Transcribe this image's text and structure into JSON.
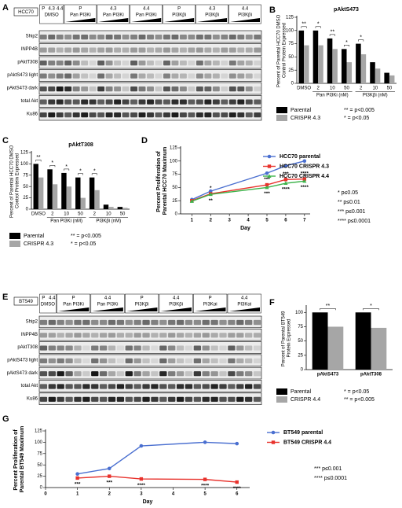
{
  "blots": [
    {
      "label": "A",
      "cell_line": "HCC70",
      "header": [
        {
          "lines": [
            "P",
            "4.3",
            "4.4"
          ],
          "treatment": "DMSO"
        },
        {
          "lines": [
            "P"
          ],
          "treatment": "Pan PI3Ki"
        },
        {
          "lines": [
            "4.3"
          ],
          "treatment": "Pan PI3Ki"
        },
        {
          "lines": [
            "4.4"
          ],
          "treatment": "Pan PI3Ki"
        },
        {
          "lines": [
            "P"
          ],
          "treatment": "PI3Kβi"
        },
        {
          "lines": [
            "4.3"
          ],
          "treatment": "PI3Kβi"
        },
        {
          "lines": [
            "4.4"
          ],
          "treatment": "PI3Kβi"
        }
      ],
      "rows": [
        "Ship2",
        "INPP4B",
        "pAktT308",
        "pAktS473 light",
        "pAktS473 dark",
        "total Akt",
        "Ku86"
      ]
    },
    {
      "label": "E",
      "cell_line": "BT549",
      "header": [
        {
          "lines": [
            "P",
            "4.4"
          ],
          "treatment": "DMSO"
        },
        {
          "lines": [
            "P"
          ],
          "treatment": "Pan PI3Ki"
        },
        {
          "lines": [
            "4.4"
          ],
          "treatment": "Pan PI3Ki"
        },
        {
          "lines": [
            "P"
          ],
          "treatment": "PI3Kβi"
        },
        {
          "lines": [
            "4.4"
          ],
          "treatment": "PI3Kβi"
        },
        {
          "lines": [
            "P"
          ],
          "treatment": "PI3Kαi"
        },
        {
          "lines": [
            "4.4"
          ],
          "treatment": "PI3Kαi"
        }
      ],
      "rows": [
        "Ship2",
        "INPP4B",
        "pAktT308",
        "pAktS473 light",
        "pAktS473 dark",
        "total Akt",
        "Ku86"
      ]
    }
  ],
  "chart_data": [
    {
      "label": "B",
      "type": "bar",
      "title": "pAktS473",
      "y_label": "Percent of Parental HCC70 DMSO Control Protein Expressed",
      "categories": [
        "DMSO",
        "2",
        "10",
        "50",
        "2",
        "10",
        "50"
      ],
      "x_groups": [
        "Pan PI3Ki (nM)",
        "PI3Kβi (nM)"
      ],
      "series": [
        {
          "name": "Parental",
          "color": "#000000",
          "values": [
            100,
            100,
            85,
            65,
            75,
            40,
            20
          ]
        },
        {
          "name": "CRISPR 4.3",
          "color": "#a6a6a6",
          "values": [
            72,
            72,
            65,
            40,
            55,
            28,
            15
          ]
        }
      ],
      "significance": [
        "**",
        "*",
        "**",
        "*",
        "*",
        null,
        null
      ],
      "ylim": [
        0,
        125
      ],
      "yticks": [
        0,
        25,
        50,
        75,
        100,
        125
      ],
      "notes": [
        "** = p<0.005",
        "* = p<0.05"
      ]
    },
    {
      "label": "C",
      "type": "bar",
      "title": "pAktT308",
      "y_label": "Percent of Parental HCC70 DMSO Control Protein Expressed",
      "categories": [
        "DMSO",
        "2",
        "10",
        "50",
        "2",
        "10",
        "50"
      ],
      "x_groups": [
        "Pan PI3Ki (nM)",
        "PI3Kβi (nM)"
      ],
      "series": [
        {
          "name": "Parental",
          "color": "#000000",
          "values": [
            100,
            88,
            80,
            70,
            70,
            10,
            5
          ]
        },
        {
          "name": "CRISPR 4.3",
          "color": "#a6a6a6",
          "values": [
            70,
            55,
            50,
            25,
            42,
            5,
            3
          ]
        }
      ],
      "significance": [
        "**",
        "*",
        "*",
        "*",
        "*",
        null,
        null
      ],
      "ylim": [
        0,
        125
      ],
      "yticks": [
        0,
        25,
        50,
        75,
        100,
        125
      ],
      "notes": [
        "** = p<0.005",
        "* = p<0.05"
      ]
    },
    {
      "label": "D",
      "type": "line",
      "y_label": "Percent Proliferation of Parental HCC70 Maximum",
      "x_label": "Day",
      "x": [
        1,
        2,
        5,
        6,
        7
      ],
      "series": [
        {
          "name": "HCC70 parental",
          "color": "#4a6fd0",
          "values": [
            27,
            43,
            77,
            91,
            100
          ],
          "significance": [
            null,
            null,
            null,
            null,
            null
          ]
        },
        {
          "name": "HCC70 CRISPR 4.3",
          "color": "#e8322c",
          "values": [
            25,
            38,
            55,
            65,
            66
          ],
          "significance": [
            null,
            "*",
            "***",
            "***",
            "****"
          ]
        },
        {
          "name": "HCC70 CRISPR 4.4",
          "color": "#3cb34a",
          "values": [
            24,
            37,
            50,
            58,
            62
          ],
          "significance": [
            null,
            "**",
            "***",
            "****",
            "****"
          ]
        }
      ],
      "xlim": [
        0.4,
        7.3
      ],
      "xticks": [
        1,
        2,
        3,
        4,
        5,
        6,
        7
      ],
      "ylim": [
        0,
        125
      ],
      "yticks": [
        0,
        25,
        50,
        75,
        100,
        125
      ],
      "notes": [
        "* p≤0.05",
        "** p≤0.01",
        "*** p≤0.001",
        "**** p≤0.0001"
      ]
    },
    {
      "label": "F",
      "type": "bar",
      "y_label": "Percent of Parental BT549 Protein Expressed",
      "categories": [
        "pAktS473",
        "pAktT308"
      ],
      "series": [
        {
          "name": "Parental",
          "color": "#000000",
          "values": [
            100,
            100
          ]
        },
        {
          "name": "CRISPR 4.4",
          "color": "#a6a6a6",
          "values": [
            75,
            73
          ]
        }
      ],
      "significance": [
        "**",
        "*"
      ],
      "ylim": [
        0,
        110
      ],
      "yticks": [
        0,
        25,
        50,
        75,
        100
      ],
      "notes": [
        "* = p<0.05",
        "** = p<0.005"
      ]
    },
    {
      "label": "G",
      "type": "line",
      "y_label": "Percent Proliferation of Parental BT549 Maximum",
      "x_label": "Day",
      "x": [
        1,
        2,
        3,
        5,
        6
      ],
      "series": [
        {
          "name": "BT549 parental",
          "color": "#4a6fd0",
          "values": [
            30,
            42,
            92,
            100,
            97
          ],
          "significance": [
            null,
            null,
            null,
            null,
            null
          ]
        },
        {
          "name": "BT549 CRISPR 4.4",
          "color": "#e8322c",
          "values": [
            21,
            25,
            19,
            18,
            12
          ],
          "significance": [
            "***",
            "***",
            "****",
            "****",
            "****"
          ]
        }
      ],
      "xlim": [
        0,
        6.4
      ],
      "xticks": [
        0,
        1,
        2,
        3,
        4,
        5,
        6
      ],
      "ylim": [
        0,
        125
      ],
      "yticks": [
        0,
        25,
        50,
        75,
        100,
        125
      ],
      "notes": [
        "*** p≤0.001",
        "**** p≤0.0001"
      ]
    }
  ]
}
